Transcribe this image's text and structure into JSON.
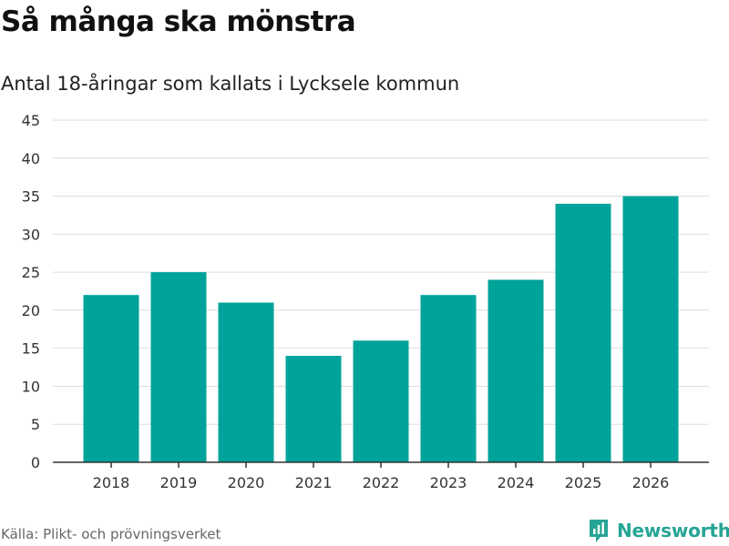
{
  "header": {
    "title": "Så många ska mönstra",
    "subtitle": "Antal 18-åringar som kallats i Lycksele kommun"
  },
  "footer": {
    "source": "Källa: Plikt- och prövningsverket",
    "brand": "Newsworthy"
  },
  "colors": {
    "bar": "#00a39a",
    "brand": "#26a596",
    "grid": "#dddddd",
    "axis": "#333333"
  },
  "chart_data": {
    "type": "bar",
    "title": "Så många ska mönstra",
    "subtitle": "Antal 18-åringar som kallats i Lycksele kommun",
    "xlabel": "",
    "ylabel": "",
    "categories": [
      "2018",
      "2019",
      "2020",
      "2021",
      "2022",
      "2023",
      "2024",
      "2025",
      "2026"
    ],
    "values": [
      22,
      25,
      21,
      14,
      16,
      22,
      24,
      34,
      35
    ],
    "ylim": [
      0,
      45
    ],
    "yticks": [
      0,
      5,
      10,
      15,
      20,
      25,
      30,
      35,
      40,
      45
    ],
    "grid": true,
    "legend": "none"
  }
}
